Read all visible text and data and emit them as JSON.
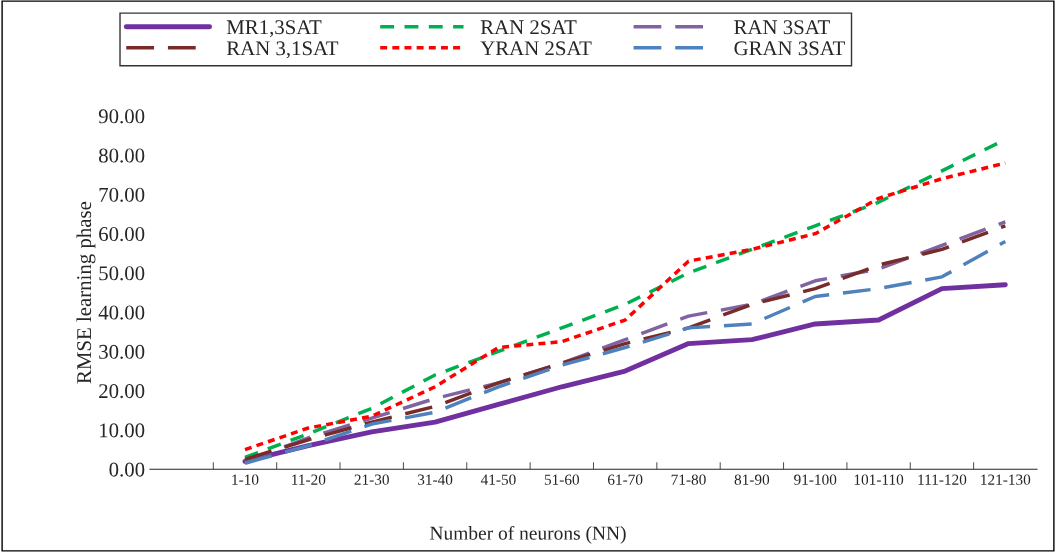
{
  "chart_data": {
    "type": "line",
    "xlabel": "Number of neurons (NN)",
    "ylabel": "RMSE learning phase",
    "categories": [
      null,
      "1-10",
      "11-20",
      "21-30",
      "31-40",
      "41-50",
      "51-60",
      "61-70",
      "71-80",
      "81-90",
      "91-100",
      "101-110",
      "111-120",
      "121-130"
    ],
    "series": [
      {
        "name": "MR1,3SAT",
        "color": "#7030a0",
        "line_style": "solid",
        "values": [
          null,
          2,
          6,
          9.5,
          12,
          16.5,
          21,
          25,
          32,
          33,
          37,
          38,
          46,
          47
        ]
      },
      {
        "name": "RAN 2SAT",
        "color": "#00b050",
        "line_style": "dashed",
        "values": [
          null,
          3,
          9,
          15.5,
          24,
          30,
          36,
          42,
          50,
          56,
          62,
          68,
          76,
          84
        ]
      },
      {
        "name": "RAN 3SAT",
        "color": "#8064a2",
        "line_style": "longdash",
        "values": [
          null,
          2,
          8,
          13,
          18,
          22,
          27,
          33,
          39,
          42,
          48,
          51,
          57,
          63
        ]
      },
      {
        "name": "RAN 3,1SAT",
        "color": "#772c2a",
        "line_style": "longdash",
        "values": [
          null,
          2.5,
          7.5,
          12,
          16,
          22,
          27,
          32,
          36,
          42,
          46,
          52,
          56,
          62
        ]
      },
      {
        "name": "YRAN 2SAT",
        "color": "#ff0000",
        "line_style": "dotted",
        "values": [
          null,
          5,
          10.5,
          13.5,
          21,
          31,
          32.5,
          38,
          53,
          56,
          60,
          69,
          74,
          78
        ]
      },
      {
        "name": "GRAN 3SAT",
        "color": "#4f81bd",
        "line_style": "longdash",
        "values": [
          null,
          1.5,
          6,
          11.5,
          14.5,
          21,
          26.5,
          31,
          36,
          37,
          44,
          46,
          49,
          58
        ]
      }
    ],
    "ylim": [
      0,
      90
    ],
    "yticks": [
      {
        "value": 0,
        "label": "0.00"
      },
      {
        "value": 10,
        "label": "10.00"
      },
      {
        "value": 20,
        "label": "20.00"
      },
      {
        "value": 30,
        "label": "30.00"
      },
      {
        "value": 40,
        "label": "40.00"
      },
      {
        "value": 50,
        "label": "50.00"
      },
      {
        "value": 60,
        "label": "60.00"
      },
      {
        "value": 70,
        "label": "70.00"
      },
      {
        "value": 80,
        "label": "80.00"
      },
      {
        "value": 90,
        "label": "90.00"
      }
    ],
    "grid": false,
    "legend": "top",
    "marker": "none"
  }
}
